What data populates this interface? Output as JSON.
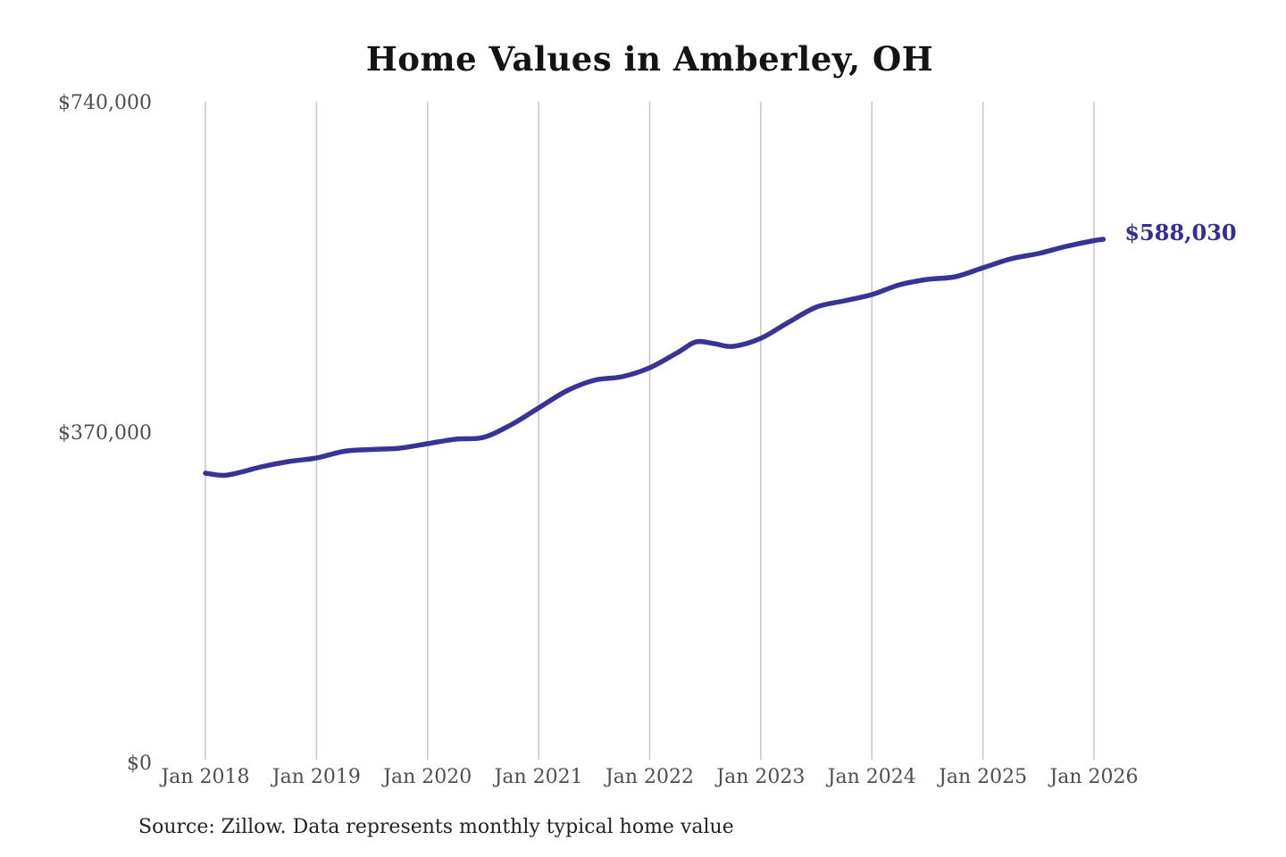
{
  "chart_data": {
    "type": "line",
    "title": "Home Values in Amberley, OH",
    "xlabel": "",
    "ylabel": "",
    "ylim": [
      0,
      740000
    ],
    "grid": "vertical-only",
    "legend": "none",
    "line_color": "#3a3397",
    "end_label": "$588,030",
    "end_label_color": "#322e92",
    "gridline_color": "#c9c9c9",
    "tick_label_color": "#4e4e4e",
    "y_ticks": [
      {
        "label": "$740,000",
        "value": 740000
      },
      {
        "label": "$370,000",
        "value": 370000
      },
      {
        "label": "$0",
        "value": 0
      }
    ],
    "x_ticks": [
      {
        "label": "Jan 2018",
        "month": 0
      },
      {
        "label": "Jan 2019",
        "month": 12
      },
      {
        "label": "Jan 2020",
        "month": 24
      },
      {
        "label": "Jan 2021",
        "month": 36
      },
      {
        "label": "Jan 2022",
        "month": 48
      },
      {
        "label": "Jan 2023",
        "month": 60
      },
      {
        "label": "Jan 2024",
        "month": 72
      },
      {
        "label": "Jan 2025",
        "month": 84
      },
      {
        "label": "Jan 2026",
        "month": 96
      }
    ],
    "points": [
      {
        "date": "2018-01",
        "value": 326000
      },
      {
        "date": "2018-03",
        "value": 323500
      },
      {
        "date": "2018-05",
        "value": 327500
      },
      {
        "date": "2018-07",
        "value": 333000
      },
      {
        "date": "2018-10",
        "value": 339000
      },
      {
        "date": "2019-01",
        "value": 343000
      },
      {
        "date": "2019-04",
        "value": 350500
      },
      {
        "date": "2019-07",
        "value": 352500
      },
      {
        "date": "2019-10",
        "value": 354000
      },
      {
        "date": "2020-01",
        "value": 359000
      },
      {
        "date": "2020-04",
        "value": 364000
      },
      {
        "date": "2020-07",
        "value": 366000
      },
      {
        "date": "2020-10",
        "value": 380000
      },
      {
        "date": "2021-01",
        "value": 399000
      },
      {
        "date": "2021-04",
        "value": 418000
      },
      {
        "date": "2021-07",
        "value": 430000
      },
      {
        "date": "2021-10",
        "value": 434000
      },
      {
        "date": "2022-01",
        "value": 444000
      },
      {
        "date": "2022-04",
        "value": 461000
      },
      {
        "date": "2022-06",
        "value": 473000
      },
      {
        "date": "2022-08",
        "value": 471000
      },
      {
        "date": "2022-10",
        "value": 468000
      },
      {
        "date": "2023-01",
        "value": 477000
      },
      {
        "date": "2023-04",
        "value": 495000
      },
      {
        "date": "2023-07",
        "value": 512000
      },
      {
        "date": "2023-10",
        "value": 519000
      },
      {
        "date": "2024-01",
        "value": 526000
      },
      {
        "date": "2024-04",
        "value": 537000
      },
      {
        "date": "2024-07",
        "value": 543000
      },
      {
        "date": "2024-10",
        "value": 546000
      },
      {
        "date": "2025-01",
        "value": 556000
      },
      {
        "date": "2025-04",
        "value": 566000
      },
      {
        "date": "2025-07",
        "value": 572000
      },
      {
        "date": "2025-10",
        "value": 580000
      },
      {
        "date": "2026-01",
        "value": 586500
      },
      {
        "date": "2026-02",
        "value": 588030
      }
    ]
  },
  "source_note": "Source: Zillow. Data represents monthly typical home value"
}
